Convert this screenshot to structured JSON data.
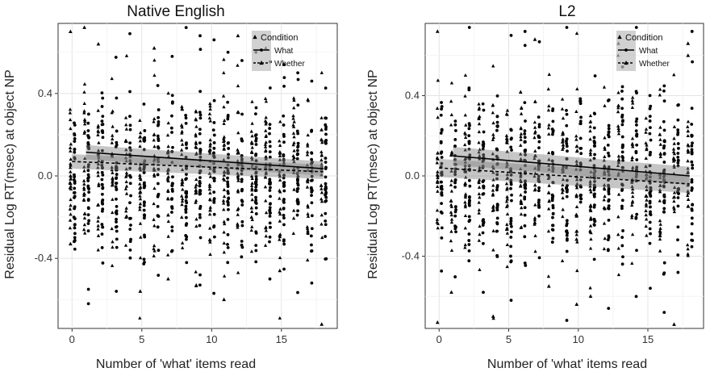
{
  "chart_data": [
    {
      "type": "scatter",
      "title": "Native English",
      "xlabel": "Number of 'what' items read",
      "ylabel": "Residual Log RT(msec) at object NP",
      "xlim": [
        -1,
        19
      ],
      "ylim": [
        -0.74,
        0.74
      ],
      "xticks": [
        "0",
        "5",
        "10",
        "15"
      ],
      "xtick_values": [
        0,
        5,
        10,
        15
      ],
      "yticks": [
        "-0.4",
        "0.0",
        "0.4"
      ],
      "ytick_values": [
        -0.4,
        0.0,
        0.4
      ],
      "grid": true,
      "legend": {
        "title": "Condition",
        "position": "top-right",
        "entries": [
          "What",
          "Whether"
        ]
      },
      "series": [
        {
          "name": "What",
          "marker": "circle",
          "line_style": "solid",
          "fit": {
            "x": [
              1,
              18
            ],
            "y": [
              0.115,
              0.035
            ]
          },
          "points": [
            {
              "x": 1,
              "y": -0.62
            },
            {
              "x": 1,
              "y": -0.55
            },
            {
              "x": 3,
              "y": -0.56
            },
            {
              "x": 7,
              "y": 0.58
            },
            {
              "x": 8,
              "y": 0.72
            },
            {
              "x": 9,
              "y": 0.68
            },
            {
              "x": 10,
              "y": 0.66
            },
            {
              "x": 11,
              "y": 0.6
            },
            {
              "x": 12,
              "y": 0.56
            },
            {
              "x": 13,
              "y": 0.6
            },
            {
              "x": 15,
              "y": 0.54
            },
            {
              "x": 16,
              "y": 0.5
            },
            {
              "x": 17,
              "y": 0.46
            },
            {
              "x": 17,
              "y": -0.52
            },
            {
              "x": 14,
              "y": -0.5
            },
            {
              "x": 9,
              "y": -0.48
            }
          ]
        },
        {
          "name": "Whether",
          "marker": "triangle",
          "line_style": "dashed",
          "fit": {
            "x": [
              0,
              18
            ],
            "y": [
              0.07,
              0.02
            ]
          },
          "points": [
            {
              "x": 0,
              "y": 0.7
            },
            {
              "x": 1,
              "y": 0.72
            },
            {
              "x": 0,
              "y": -0.33
            },
            {
              "x": 5,
              "y": -0.56
            },
            {
              "x": 7,
              "y": -0.5
            },
            {
              "x": 11,
              "y": -0.6
            },
            {
              "x": 12,
              "y": 0.68
            },
            {
              "x": 14,
              "y": 0.62
            },
            {
              "x": 18,
              "y": -0.72
            },
            {
              "x": 15,
              "y": -0.46
            },
            {
              "x": 2,
              "y": 0.64
            },
            {
              "x": 6,
              "y": 0.62
            }
          ]
        }
      ]
    },
    {
      "type": "scatter",
      "title": "L2",
      "xlabel": "Number of 'what' items read",
      "ylabel": "Residual Log RT(msec) at object NP",
      "xlim": [
        -1,
        19
      ],
      "ylim": [
        -0.76,
        0.76
      ],
      "xticks": [
        "0",
        "5",
        "10",
        "15"
      ],
      "xtick_values": [
        0,
        5,
        10,
        15
      ],
      "yticks": [
        "-0.4",
        "0.0",
        "0.4"
      ],
      "ytick_values": [
        -0.4,
        0.0,
        0.4
      ],
      "grid": true,
      "legend": {
        "title": "Condition",
        "position": "top-right",
        "entries": [
          "What",
          "Whether"
        ]
      },
      "series": [
        {
          "name": "What",
          "marker": "circle",
          "line_style": "solid",
          "fit": {
            "x": [
              1,
              18
            ],
            "y": [
              0.1,
              0.0
            ]
          },
          "points": [
            {
              "x": 2,
              "y": 0.74
            },
            {
              "x": 5,
              "y": 0.7
            },
            {
              "x": 6,
              "y": 0.72
            },
            {
              "x": 9,
              "y": 0.74
            },
            {
              "x": 14,
              "y": 0.74
            },
            {
              "x": 3,
              "y": -0.58
            },
            {
              "x": 5,
              "y": -0.62
            },
            {
              "x": 9,
              "y": -0.72
            },
            {
              "x": 12,
              "y": -0.66
            },
            {
              "x": 15,
              "y": -0.56
            },
            {
              "x": 16,
              "y": -0.68
            },
            {
              "x": 18,
              "y": 0.72
            }
          ]
        },
        {
          "name": "Whether",
          "marker": "triangle",
          "line_style": "dashed",
          "fit": {
            "x": [
              0,
              18
            ],
            "y": [
              0.04,
              -0.04
            ]
          },
          "points": [
            {
              "x": 0,
              "y": 0.72
            },
            {
              "x": 0,
              "y": -0.73
            },
            {
              "x": 1,
              "y": -0.58
            },
            {
              "x": 4,
              "y": -0.7
            },
            {
              "x": 8,
              "y": -0.55
            },
            {
              "x": 10,
              "y": -0.64
            },
            {
              "x": 13,
              "y": 0.66
            },
            {
              "x": 17,
              "y": -0.74
            },
            {
              "x": 18,
              "y": 0.66
            },
            {
              "x": 18,
              "y": 0.6
            },
            {
              "x": 7,
              "y": 0.68
            },
            {
              "x": 11,
              "y": -0.6
            }
          ]
        }
      ]
    }
  ]
}
